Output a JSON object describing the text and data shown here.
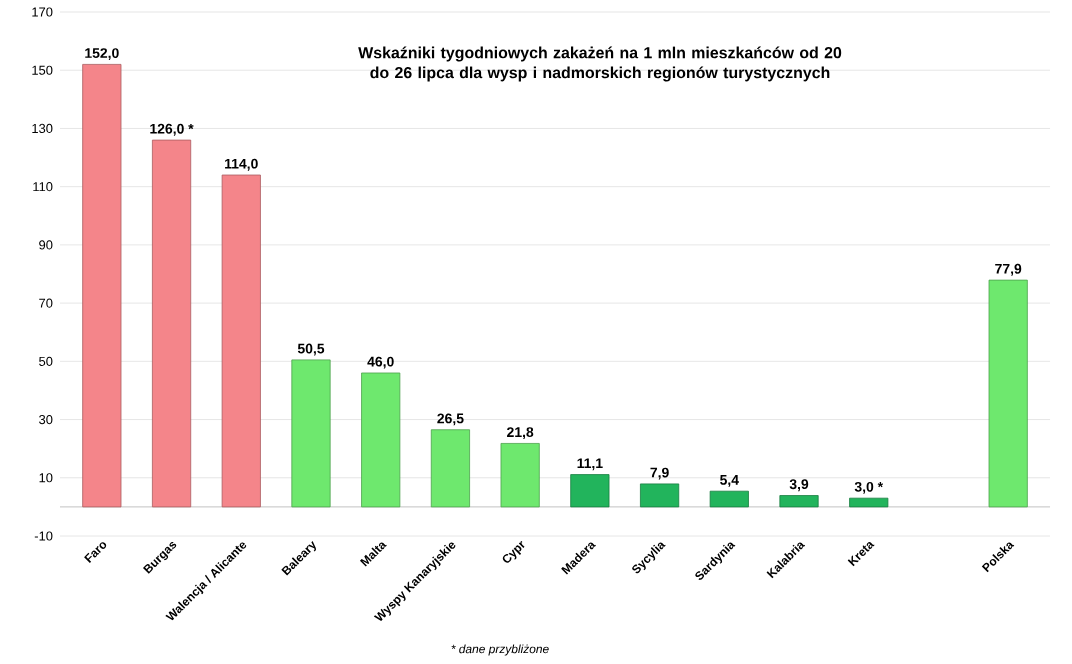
{
  "chart_data": {
    "type": "bar",
    "title": "Wskaźniki tygodniowych zakażeń na 1 mln mieszkańców od 20 do 26 lipca dla wysp i nadmorskich regionów turystycznych",
    "categories": [
      "Faro",
      "Burgas",
      "Walencja / Alicante",
      "Baleary",
      "Malta",
      "Wyspy Kanaryjskie",
      "Cypr",
      "Madera",
      "Sycylia",
      "Sardynia",
      "Kalabria",
      "Kreta",
      null,
      "Polska"
    ],
    "values": [
      152.0,
      126.0,
      114.0,
      50.5,
      46.0,
      26.5,
      21.8,
      11.1,
      7.9,
      5.4,
      3.9,
      3.0,
      null,
      77.9
    ],
    "value_labels": [
      "152,0",
      "126,0 *",
      "114,0",
      "50,5",
      "46,0",
      "26,5",
      "21,8",
      "11,1",
      "7,9",
      "5,4",
      "3,9",
      "3,0 *",
      null,
      "77,9"
    ],
    "colors": [
      "#f4858a",
      "#f4858a",
      "#f4858a",
      "#6ee86e",
      "#6ee86e",
      "#6ee86e",
      "#6ee86e",
      "#22b45c",
      "#22b45c",
      "#22b45c",
      "#22b45c",
      "#22b45c",
      "#6ee86e",
      "#6ee86e"
    ],
    "ylim": [
      -10,
      170
    ],
    "yticks": [
      -10,
      10,
      30,
      50,
      70,
      90,
      110,
      130,
      150,
      170
    ],
    "grid": "y",
    "annotations": [
      "* dane przybliżone"
    ]
  }
}
